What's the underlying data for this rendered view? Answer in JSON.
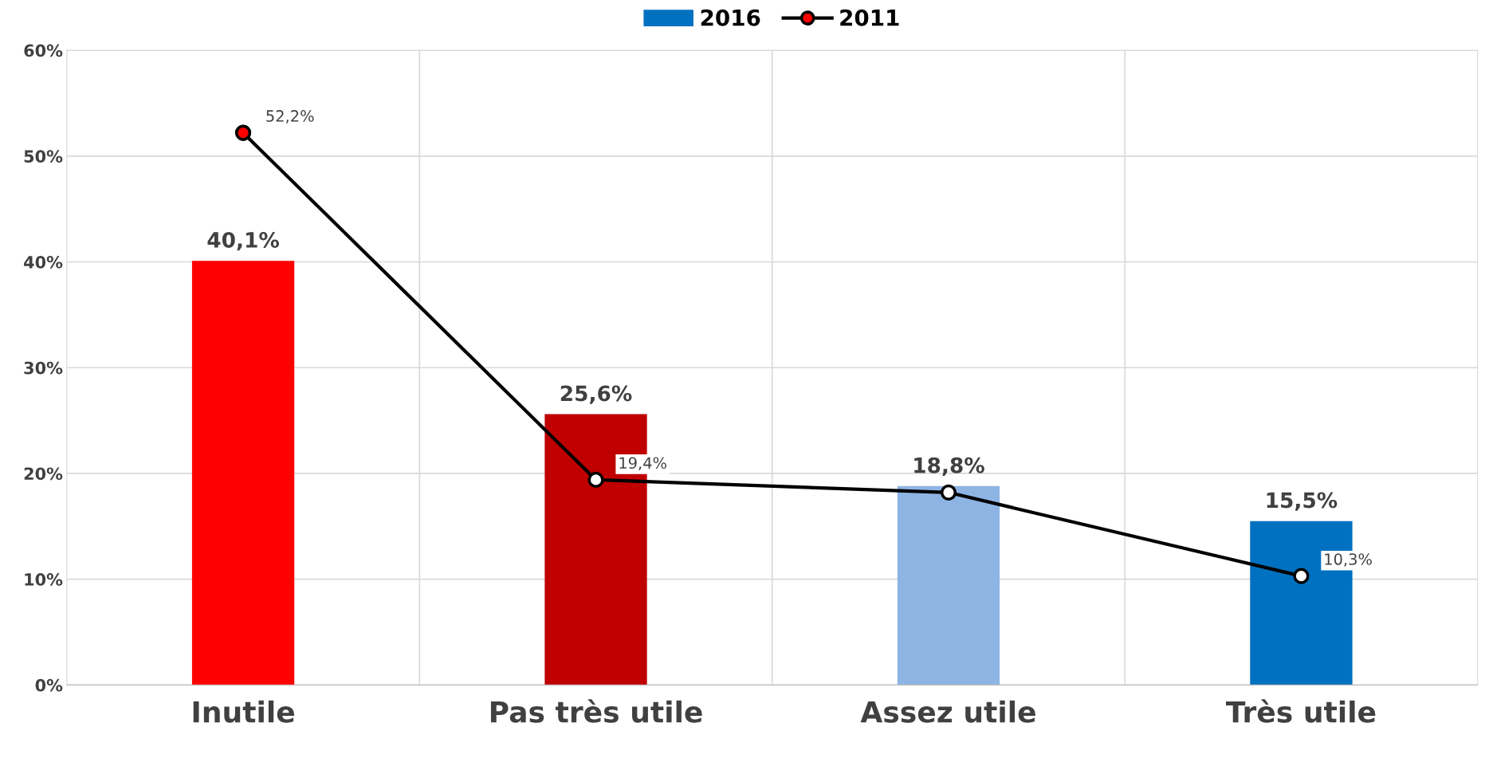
{
  "chart_data": {
    "type": "bar",
    "categories": [
      "Inutile",
      "Pas très utile",
      "Assez utile",
      "Très utile"
    ],
    "series": [
      {
        "name": "2016",
        "color": "#0070c0",
        "colors": [
          "#ff0000",
          "#c00000",
          "#8eb4e3",
          "#0070c0"
        ],
        "values": [
          40.1,
          25.6,
          18.8,
          15.5
        ],
        "value_labels": [
          "40,1%",
          "25,6%",
          "18,8%",
          "15,5%"
        ]
      },
      {
        "name": "2011",
        "type": "line",
        "color": "#000000",
        "colors": [
          "#ff0000",
          "#ffffff",
          "#ffffff",
          "#ffffff"
        ],
        "values": [
          52.2,
          19.4,
          18.2,
          10.3
        ],
        "value_labels": [
          "52,2%",
          "19,4%",
          null,
          "10,3%"
        ]
      }
    ],
    "ylim": [
      0,
      60
    ],
    "yticks": [
      {
        "value": 0,
        "label": "0%"
      },
      {
        "value": 10,
        "label": "10%"
      },
      {
        "value": 20,
        "label": "20%"
      },
      {
        "value": 30,
        "label": "30%"
      },
      {
        "value": 40,
        "label": "40%"
      },
      {
        "value": 50,
        "label": "50%"
      },
      {
        "value": 60,
        "label": "60%"
      }
    ],
    "grid": true,
    "legend": "top",
    "marker": "circle",
    "line_style": "solid"
  }
}
